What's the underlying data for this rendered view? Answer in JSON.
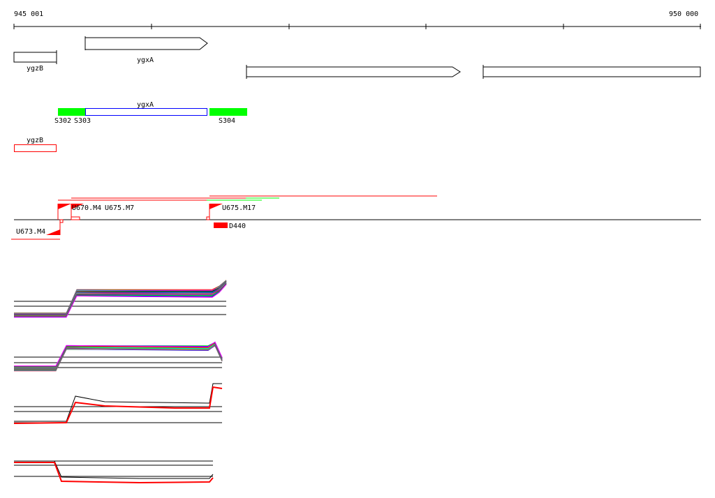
{
  "ruler": {
    "start_label": "945 001",
    "end_label": "950 000"
  },
  "genes_track": [
    {
      "label": "ygzB"
    },
    {
      "label": "ygxA"
    },
    {
      "label": ""
    },
    {
      "label": ""
    }
  ],
  "feature_track": {
    "segments": [
      {
        "label": "S302",
        "color": "#00ff00"
      },
      {
        "label": "S303",
        "color": "#0000ff"
      },
      {
        "label": "S304",
        "color": "#00ff00"
      }
    ],
    "center_label": "ygxA"
  },
  "ygzB_track": {
    "label": "ygzB",
    "color": "#ff0000"
  },
  "promoter_track": {
    "labels": [
      "U670.M4",
      "U675.M7",
      "U675.M17",
      "U673.M4",
      "D440"
    ]
  },
  "colors": {
    "accent": "#ff0000",
    "green": "#00ff00",
    "blue": "#0000ff"
  }
}
